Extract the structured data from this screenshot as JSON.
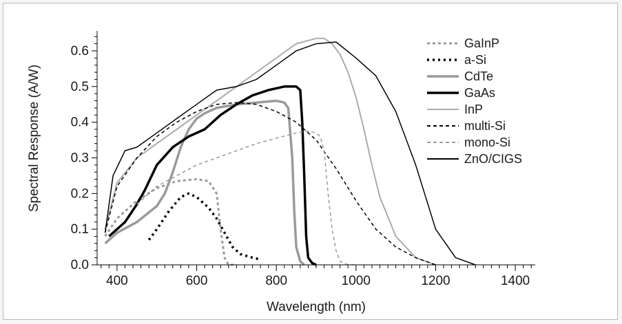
{
  "chart_data": {
    "type": "line",
    "title": "",
    "xlabel": "Wavelength (nm)",
    "ylabel": "Spectral Response (A/W)",
    "xlim": [
      350,
      1450
    ],
    "ylim": [
      0.0,
      0.65
    ],
    "xticks": [
      400,
      600,
      800,
      1000,
      1200,
      1400
    ],
    "yticks": [
      0.0,
      0.1,
      0.2,
      0.3,
      0.4,
      0.5,
      0.6
    ],
    "ytick_labels": [
      "0.0",
      "0.1",
      "0.2",
      "0.3",
      "0.4",
      "0.5",
      "0.6"
    ],
    "grid": false,
    "legend_position": "top-right",
    "series": [
      {
        "name": "GaInP",
        "color": "#9a9a9a",
        "width": 3,
        "dash": "4 4",
        "x": [
          370,
          400,
          450,
          500,
          550,
          600,
          630,
          650,
          660,
          670,
          680,
          700
        ],
        "y": [
          0.08,
          0.13,
          0.18,
          0.215,
          0.235,
          0.24,
          0.235,
          0.2,
          0.1,
          0.02,
          0.0,
          0.0
        ]
      },
      {
        "name": "a-Si",
        "color": "#000000",
        "width": 3.5,
        "dash": "3 5",
        "x": [
          480,
          500,
          530,
          560,
          580,
          600,
          630,
          650,
          670,
          690,
          710,
          740,
          760
        ],
        "y": [
          0.07,
          0.1,
          0.15,
          0.19,
          0.2,
          0.19,
          0.16,
          0.13,
          0.09,
          0.05,
          0.03,
          0.02,
          0.015
        ]
      },
      {
        "name": "CdTe",
        "color": "#9a9a9a",
        "width": 3.5,
        "dash": "",
        "x": [
          370,
          400,
          450,
          500,
          520,
          540,
          560,
          580,
          600,
          620,
          650,
          700,
          750,
          800,
          820,
          830,
          840,
          845,
          850,
          860,
          870
        ],
        "y": [
          0.06,
          0.09,
          0.12,
          0.165,
          0.2,
          0.26,
          0.33,
          0.38,
          0.41,
          0.425,
          0.44,
          0.45,
          0.455,
          0.46,
          0.455,
          0.44,
          0.3,
          0.15,
          0.05,
          0.01,
          0.0
        ]
      },
      {
        "name": "GaAs",
        "color": "#000000",
        "width": 3.5,
        "dash": "",
        "x": [
          380,
          420,
          450,
          470,
          500,
          540,
          580,
          620,
          660,
          700,
          740,
          780,
          820,
          850,
          860,
          865,
          870,
          875,
          880,
          890,
          900
        ],
        "y": [
          0.08,
          0.12,
          0.17,
          0.21,
          0.28,
          0.33,
          0.36,
          0.38,
          0.42,
          0.45,
          0.475,
          0.49,
          0.5,
          0.5,
          0.49,
          0.4,
          0.25,
          0.08,
          0.02,
          0.005,
          0.0
        ]
      },
      {
        "name": "InP",
        "color": "#ababab",
        "width": 2,
        "dash": "",
        "x": [
          370,
          400,
          450,
          500,
          550,
          600,
          650,
          700,
          750,
          800,
          850,
          900,
          920,
          940,
          960,
          980,
          1000,
          1020,
          1040,
          1060,
          1100,
          1150,
          1200
        ],
        "y": [
          0.1,
          0.23,
          0.3,
          0.34,
          0.38,
          0.42,
          0.46,
          0.5,
          0.54,
          0.58,
          0.62,
          0.635,
          0.635,
          0.62,
          0.59,
          0.54,
          0.47,
          0.38,
          0.28,
          0.19,
          0.08,
          0.02,
          0.0
        ]
      },
      {
        "name": "multi-Si",
        "color": "#000000",
        "width": 1.5,
        "dash": "5 4",
        "x": [
          370,
          400,
          450,
          500,
          550,
          600,
          650,
          700,
          750,
          800,
          850,
          900,
          950,
          1000,
          1050,
          1100,
          1150,
          1200
        ],
        "y": [
          0.09,
          0.22,
          0.3,
          0.36,
          0.4,
          0.43,
          0.45,
          0.455,
          0.45,
          0.43,
          0.4,
          0.35,
          0.27,
          0.18,
          0.1,
          0.05,
          0.02,
          0.0
        ]
      },
      {
        "name": "mono-Si",
        "color": "#9a9a9a",
        "width": 1.5,
        "dash": "5 4",
        "x": [
          450,
          500,
          550,
          600,
          650,
          700,
          750,
          800,
          850,
          880,
          900,
          910,
          920,
          930,
          940,
          950,
          960,
          980,
          1000
        ],
        "y": [
          0.17,
          0.22,
          0.25,
          0.28,
          0.3,
          0.32,
          0.34,
          0.355,
          0.37,
          0.375,
          0.37,
          0.36,
          0.32,
          0.2,
          0.1,
          0.04,
          0.01,
          0.0,
          0.0
        ]
      },
      {
        "name": "ZnO/CIGS",
        "color": "#000000",
        "width": 1.5,
        "dash": "",
        "x": [
          370,
          390,
          420,
          450,
          500,
          550,
          600,
          650,
          700,
          750,
          800,
          850,
          900,
          950,
          1000,
          1050,
          1100,
          1150,
          1200,
          1250,
          1300
        ],
        "y": [
          0.09,
          0.25,
          0.32,
          0.33,
          0.37,
          0.41,
          0.45,
          0.49,
          0.5,
          0.52,
          0.56,
          0.6,
          0.62,
          0.625,
          0.58,
          0.53,
          0.43,
          0.28,
          0.1,
          0.02,
          0.0
        ]
      }
    ]
  }
}
